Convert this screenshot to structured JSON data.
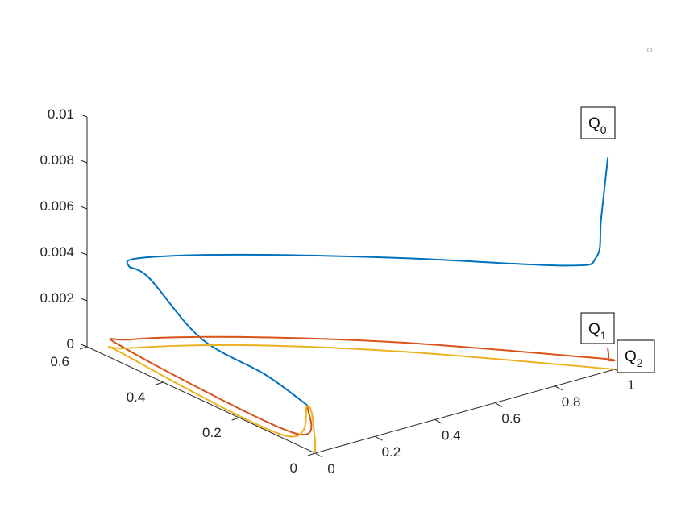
{
  "chart_data": {
    "type": "line",
    "projection": "3d",
    "grid": false,
    "x_axis": {
      "range": [
        0,
        1
      ],
      "ticks": [
        0,
        0.2,
        0.4,
        0.6,
        0.8,
        1
      ],
      "tick_labels": [
        "0",
        "0.2",
        "0.4",
        "0.6",
        "0.8",
        "1"
      ]
    },
    "y_axis": {
      "range": [
        0,
        0.6
      ],
      "ticks": [
        0,
        0.2,
        0.4,
        0.6
      ],
      "tick_labels": [
        "0",
        "0.2",
        "0.4",
        "0.6"
      ]
    },
    "z_axis": {
      "range": [
        0,
        0.01
      ],
      "ticks": [
        0,
        0.002,
        0.004,
        0.006,
        0.008,
        0.01
      ],
      "tick_labels": [
        "0",
        "0.002",
        "0.004",
        "0.006",
        "0.008",
        "0.01"
      ]
    },
    "series": [
      {
        "name": "Q0",
        "color": "#0072BD",
        "points": [
          [
            0.197,
            0.175,
            0
          ],
          [
            0.144,
            0.243,
            0.001
          ],
          [
            0.069,
            0.354,
            0.002
          ],
          [
            0.128,
            0.537,
            0.003
          ],
          [
            0.119,
            0.584,
            0.0032
          ],
          [
            0.119,
            0.552,
            0.0038
          ],
          [
            0.366,
            0.482,
            0.00358
          ],
          [
            0.677,
            0.303,
            0.00368
          ],
          [
            0.95,
            0.09,
            0.004
          ],
          [
            1.012,
            0.058,
            0.0044
          ],
          [
            1.03,
            0.06,
            0.006
          ],
          [
            1.079,
            0.081,
            0.0083
          ]
        ]
      },
      {
        "name": "Q1",
        "color": "#D95319",
        "points": [
          [
            0.197,
            0.175,
            0
          ],
          [
            0.046,
            0.092,
            0
          ],
          [
            0.072,
            0.557,
            0
          ],
          [
            0.125,
            0.582,
            0
          ],
          [
            0.366,
            0.482,
            0
          ],
          [
            0.677,
            0.303,
            0
          ],
          [
            1.012,
            0.058,
            0
          ],
          [
            1.028,
            0.041,
            0
          ],
          [
            1.079,
            0.081,
            0
          ]
        ]
      },
      {
        "name": "Q2",
        "color": "#EDB120",
        "points": [
          [
            0,
            0,
            0
          ],
          [
            0.078,
            0.063,
            0
          ],
          [
            0.197,
            0.175,
            0
          ],
          [
            0.015,
            0.093,
            0
          ],
          [
            0.043,
            0.534,
            0
          ],
          [
            0.077,
            0.555,
            0
          ],
          [
            0.33,
            0.453,
            0
          ],
          [
            0.637,
            0.271,
            0
          ],
          [
            1,
            0,
            0
          ]
        ]
      }
    ],
    "annotations": [
      {
        "text": "Q",
        "subscript": "0"
      },
      {
        "text": "Q",
        "subscript": "1"
      },
      {
        "text": "Q",
        "subscript": "2"
      }
    ]
  }
}
